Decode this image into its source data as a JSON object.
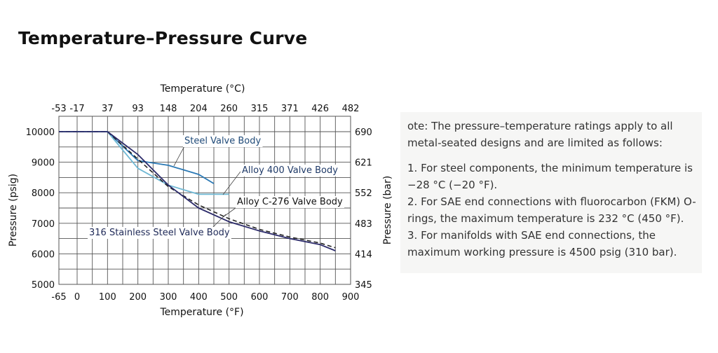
{
  "page": {
    "title": "Temperature–Pressure Curve"
  },
  "chart_data": {
    "type": "line",
    "title": "Temperature–Pressure Curve",
    "xlabel": "Temperature (°F)",
    "x2label": "Temperature (°C)",
    "ylabel": "Pressure (psig)",
    "y2label": "Pressure (bar)",
    "xlim": [
      -65,
      900
    ],
    "ylim": [
      5000,
      10000
    ],
    "grid": true,
    "x_ticks": [
      "-65",
      "0",
      "100",
      "200",
      "300",
      "400",
      "500",
      "600",
      "700",
      "800",
      "900"
    ],
    "x2_ticks": [
      "-53",
      "-17",
      "37",
      "93",
      "148",
      "204",
      "260",
      "315",
      "371",
      "426",
      "482"
    ],
    "y_ticks": [
      "5000",
      "6000",
      "7000",
      "8000",
      "9000",
      "10000"
    ],
    "y2_ticks": [
      "345",
      "414",
      "483",
      "552",
      "621",
      "690"
    ],
    "series": [
      {
        "name": "Steel Valve Body",
        "color": "#2a78b4",
        "style": "solid",
        "x": [
          -65,
          100,
          200,
          300,
          400,
          450
        ],
        "y": [
          10000,
          10000,
          9050,
          8900,
          8600,
          8300
        ]
      },
      {
        "name": "Alloy 400 Valve Body",
        "color": "#6fb8d4",
        "style": "solid",
        "x": [
          -65,
          100,
          200,
          300,
          400,
          500
        ],
        "y": [
          10000,
          10000,
          8800,
          8250,
          7950,
          7950
        ]
      },
      {
        "name": "Alloy C-276 Valve Body",
        "color": "#222222",
        "style": "dashed",
        "x": [
          -65,
          100,
          200,
          300,
          400,
          500,
          600,
          700,
          800,
          850
        ],
        "y": [
          10000,
          10000,
          9100,
          8200,
          7600,
          7150,
          6800,
          6550,
          6350,
          6200
        ]
      },
      {
        "name": "316 Stainless Steel Valve Body",
        "color": "#2b2a6a",
        "style": "solid",
        "x": [
          -65,
          100,
          200,
          300,
          400,
          500,
          600,
          700,
          800,
          850
        ],
        "y": [
          10000,
          10000,
          9250,
          8250,
          7500,
          7050,
          6750,
          6500,
          6300,
          6100
        ]
      }
    ],
    "annotations": [
      {
        "label": "Steel Valve Body"
      },
      {
        "label": "Alloy 400 Valve Body"
      },
      {
        "label": "Alloy C-276 Valve Body"
      },
      {
        "label": "316 Stainless Steel Valve Body"
      }
    ]
  },
  "note": {
    "intro": "ote: The pressure–temperature ratings apply to all metal-seated designs and are limited as follows:",
    "items": [
      "1. For steel components, the minimum temperature is −28 °C (−20 °F).",
      "2. For SAE end connections with fluorocarbon (FKM) O-rings, the maximum temperature is 232 °C (450 °F).",
      "3. For manifolds with SAE end connections, the maximum working pressure is 4500 psig (310 bar)."
    ]
  }
}
